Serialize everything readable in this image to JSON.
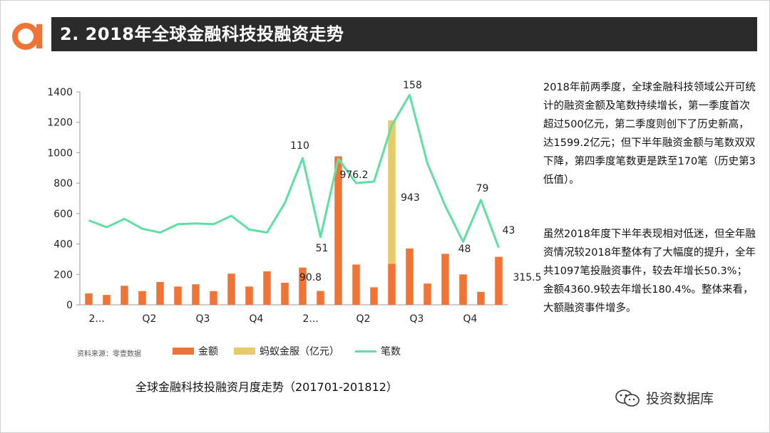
{
  "header": {
    "title": "2. 2018年全球金融科技投融资走势"
  },
  "colors": {
    "bar": "#f07436",
    "ant": "#e7cb69",
    "line": "#5fe0a0",
    "title_bg": "#2b2b2b",
    "logo": "#f07436"
  },
  "chart_data": {
    "type": "bar",
    "caption": "全球金融科技投融资月度走势（201701-201812）",
    "x_tick_labels": [
      "2...",
      "Q2",
      "Q3",
      "Q4",
      "2...",
      "Q2",
      "Q3",
      "Q4"
    ],
    "ylim": [
      0,
      1400
    ],
    "yticks": [
      0,
      200,
      400,
      600,
      800,
      1000,
      1200,
      1400
    ],
    "series": [
      {
        "name": "金额",
        "type": "bar",
        "values": [
          75,
          65,
          125,
          90,
          150,
          120,
          135,
          90,
          205,
          120,
          220,
          145,
          245,
          90.8,
          976.2,
          265,
          115,
          270,
          370,
          140,
          335,
          200,
          85,
          315.5
        ]
      },
      {
        "name": "蚂蚁金服（亿元）",
        "type": "bar_stack",
        "values": [
          0,
          0,
          0,
          0,
          0,
          0,
          0,
          0,
          0,
          0,
          0,
          0,
          0,
          0,
          0,
          0,
          0,
          943,
          0,
          0,
          0,
          0,
          0,
          0
        ]
      },
      {
        "name": "笔数",
        "type": "line",
        "values": [
          555,
          510,
          565,
          500,
          475,
          530,
          535,
          530,
          585,
          495,
          475,
          670,
          965,
          445,
          960,
          800,
          810,
          1180,
          1380,
          930,
          650,
          415,
          690,
          375
        ]
      }
    ],
    "annotations": [
      {
        "text": "110",
        "series": "笔数",
        "index": 12
      },
      {
        "text": "51",
        "series": "笔数",
        "index": 13
      },
      {
        "text": "976.2",
        "series": "金额",
        "index": 14
      },
      {
        "text": "943",
        "series": "蚂蚁金服（亿元）",
        "index": 17
      },
      {
        "text": "158",
        "series": "笔数",
        "index": 18
      },
      {
        "text": "48",
        "series": "笔数",
        "index": 21
      },
      {
        "text": "79",
        "series": "笔数",
        "index": 22
      },
      {
        "text": "43",
        "series": "笔数",
        "index": 23
      },
      {
        "text": "90.8",
        "series": "金额",
        "index": 13
      },
      {
        "text": "315.5",
        "series": "金额",
        "index": 23
      }
    ]
  },
  "legend": {
    "source": "资料来源：零壹数据",
    "items": [
      "金额",
      "蚂蚁金服（亿元）",
      "笔数"
    ]
  },
  "side_text": {
    "p1": "2018年前两季度，全球金融科技领域公开可统计的融资金额及笔数持续增长，第一季度首次超过500亿元，第二季度则创下了历史新高，达1599.2亿元；但下半年融资金额与笔数双双下降，第四季度笔数更是跌至170笔（历史第3低值）。",
    "p2": "虽然2018年度下半年表现相对低迷，但全年融资情况较2018年整体有了大幅度的提升，全年共1097笔投融资事件，较去年增长50.3%；金额4360.9较去年增长180.4%。整体来看，大额融资事件增多。"
  },
  "watermark": {
    "text": "投资数据库"
  }
}
